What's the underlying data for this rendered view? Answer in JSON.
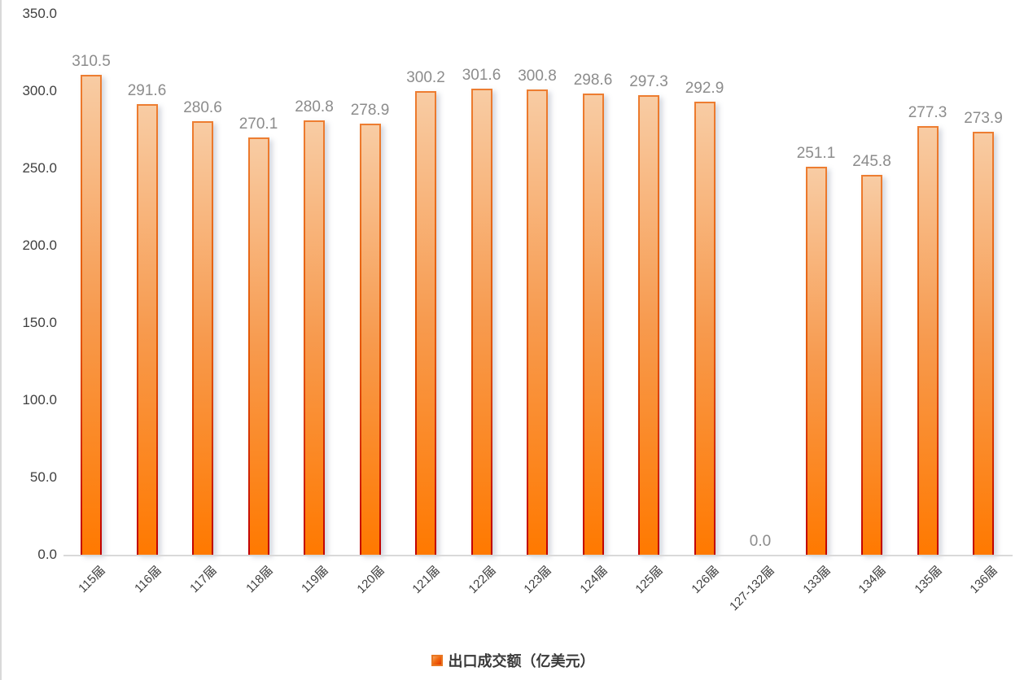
{
  "chart_data": {
    "type": "bar",
    "title": "",
    "xlabel": "",
    "ylabel": "",
    "categories": [
      "115届",
      "116届",
      "117届",
      "118届",
      "119届",
      "120届",
      "121届",
      "122届",
      "123届",
      "124届",
      "125届",
      "126届",
      "127-132届",
      "133届",
      "134届",
      "135届",
      "136届"
    ],
    "series": [
      {
        "name": "出口成交额（亿美元）",
        "values": [
          310.5,
          291.6,
          280.6,
          270.1,
          280.8,
          278.9,
          300.2,
          301.6,
          300.8,
          298.6,
          297.3,
          292.9,
          0.0,
          251.1,
          245.8,
          277.3,
          273.9
        ]
      }
    ],
    "ylim": [
      0,
      350
    ],
    "ytick_step": 50,
    "ytick_labels": [
      "0.0",
      "50.0",
      "100.0",
      "150.0",
      "200.0",
      "250.0",
      "300.0",
      "350.0"
    ],
    "grid": false,
    "legend_position": "bottom-center",
    "data_labels_shown": true,
    "colors": {
      "bar_fill_top": "#f8cca4",
      "bar_fill_bottom": "#ff7900",
      "bar_border_top": "#ed7d31",
      "bar_border_bottom": "#c00000",
      "value_label": "#8c8c8c",
      "axis_text": "#404040",
      "axis_line": "#d9d9d9",
      "background": "#ffffff"
    }
  },
  "legend": {
    "label": "出口成交额（亿美元）"
  }
}
